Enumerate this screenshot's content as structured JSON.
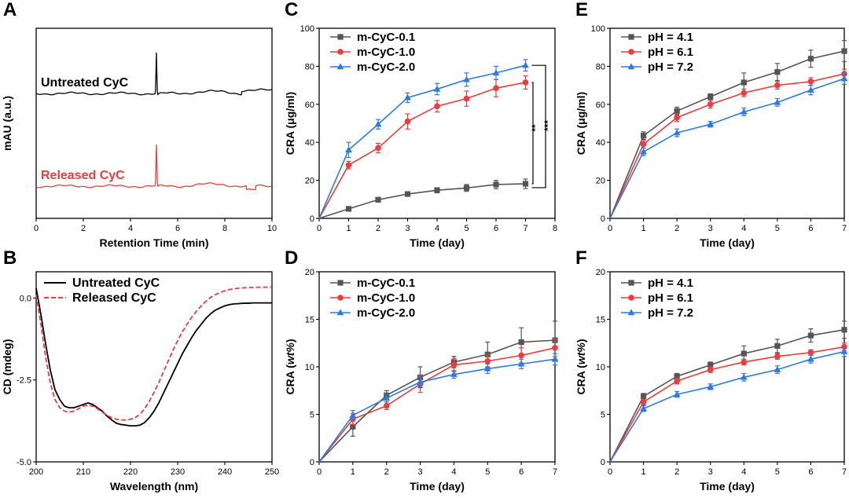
{
  "colors": {
    "gray": "#555555",
    "red": "#ef3b3b",
    "blue": "#2c7be5",
    "black": "#000000"
  },
  "chart_data": [
    {
      "panel": "A",
      "type": "line",
      "xlabel": "Retention Time (min)",
      "ylabel": "mAU (a.u.)",
      "xlim": [
        0,
        10
      ],
      "xticks": [
        0,
        2,
        4,
        6,
        8,
        10
      ],
      "series": [
        {
          "name": "Untreated CyC",
          "color": "black",
          "baseline": 0,
          "peak_at": 5.1,
          "peak_height": 1.0,
          "notes": "single sharp peak near 5.1 min, small step near 8.8 min"
        },
        {
          "name": "Released CyC",
          "color": "red",
          "baseline": 0,
          "peak_at": 5.1,
          "peak_height": 1.0,
          "notes": "single sharp peak near 5.1 min, small dip near 9.0 min"
        }
      ]
    },
    {
      "panel": "B",
      "type": "line",
      "xlabel": "Wavelength (nm)",
      "ylabel": "CD (mdeg)",
      "xlim": [
        200,
        250
      ],
      "ylim": [
        -5.0,
        0.8
      ],
      "xticks": [
        200,
        210,
        220,
        230,
        240,
        250
      ],
      "yticks": [
        "0.0",
        "-2.5",
        "-5.0"
      ],
      "series": [
        {
          "name": "Untreated CyC",
          "style": "solid",
          "color": "black",
          "x": [
            200,
            201,
            202,
            203,
            204,
            205,
            206,
            207,
            208,
            209,
            210,
            211,
            212,
            213,
            214,
            215,
            216,
            217,
            218,
            219,
            220,
            221,
            222,
            223,
            224,
            225,
            226,
            227,
            228,
            229,
            230,
            231,
            232,
            233,
            234,
            235,
            236,
            237,
            238,
            239,
            240,
            241,
            242,
            243,
            244,
            245,
            246,
            247,
            248,
            249,
            250
          ],
          "y": [
            0.3,
            -0.5,
            -1.4,
            -2.2,
            -2.8,
            -3.1,
            -3.3,
            -3.35,
            -3.35,
            -3.3,
            -3.25,
            -3.2,
            -3.25,
            -3.35,
            -3.45,
            -3.6,
            -3.72,
            -3.82,
            -3.86,
            -3.88,
            -3.9,
            -3.9,
            -3.88,
            -3.8,
            -3.65,
            -3.45,
            -3.2,
            -2.9,
            -2.6,
            -2.3,
            -2.0,
            -1.7,
            -1.45,
            -1.2,
            -0.98,
            -0.8,
            -0.62,
            -0.48,
            -0.37,
            -0.3,
            -0.24,
            -0.2,
            -0.18,
            -0.17,
            -0.16,
            -0.16,
            -0.15,
            -0.15,
            -0.15,
            -0.15,
            -0.15
          ]
        },
        {
          "name": "Released CyC",
          "style": "dashed",
          "color": "red",
          "x": [
            200,
            201,
            202,
            203,
            204,
            205,
            206,
            207,
            208,
            209,
            210,
            211,
            212,
            213,
            214,
            215,
            216,
            217,
            218,
            219,
            220,
            221,
            222,
            223,
            224,
            225,
            226,
            227,
            228,
            229,
            230,
            231,
            232,
            233,
            234,
            235,
            236,
            237,
            238,
            239,
            240,
            241,
            242,
            243,
            244,
            245,
            246,
            247,
            248,
            249,
            250
          ],
          "y": [
            0.1,
            -0.8,
            -1.8,
            -2.6,
            -3.1,
            -3.35,
            -3.45,
            -3.48,
            -3.45,
            -3.38,
            -3.3,
            -3.27,
            -3.3,
            -3.38,
            -3.48,
            -3.58,
            -3.65,
            -3.7,
            -3.72,
            -3.72,
            -3.7,
            -3.65,
            -3.55,
            -3.38,
            -3.15,
            -2.88,
            -2.58,
            -2.25,
            -1.92,
            -1.6,
            -1.3,
            -1.03,
            -0.8,
            -0.58,
            -0.4,
            -0.24,
            -0.1,
            0.02,
            0.1,
            0.17,
            0.22,
            0.26,
            0.28,
            0.3,
            0.31,
            0.32,
            0.32,
            0.33,
            0.33,
            0.33,
            0.33
          ]
        }
      ]
    },
    {
      "panel": "C",
      "type": "line",
      "xlabel": "Time (day)",
      "ylabel": "CRA (μg/ml)",
      "xlim": [
        0,
        8
      ],
      "ylim": [
        0,
        100
      ],
      "xticks": [
        0,
        1,
        2,
        3,
        4,
        5,
        6,
        7,
        8
      ],
      "yticks": [
        0,
        20,
        40,
        60,
        80,
        100
      ],
      "x": [
        0,
        1,
        2,
        3,
        4,
        5,
        6,
        7
      ],
      "series": [
        {
          "name": "m-CyC-0.1",
          "color": "gray",
          "marker": "square",
          "values": [
            0,
            5,
            9.8,
            12.8,
            14.8,
            16,
            17.8,
            18.2
          ],
          "errors": [
            0,
            1,
            1.2,
            1.2,
            1.3,
            1.8,
            2.2,
            2.5
          ]
        },
        {
          "name": "m-CyC-1.0",
          "color": "red",
          "marker": "circle",
          "values": [
            0,
            28,
            37,
            51,
            59,
            63,
            68.5,
            71.5
          ],
          "errors": [
            0,
            2,
            2.5,
            4,
            3,
            4,
            4.5,
            3.5
          ]
        },
        {
          "name": "m-CyC-2.0",
          "color": "blue",
          "marker": "triangle",
          "values": [
            0,
            36,
            49.5,
            63.5,
            68,
            73,
            76.5,
            80.5
          ],
          "errors": [
            0,
            4,
            2.5,
            2.5,
            3,
            3.5,
            3.5,
            3
          ]
        }
      ],
      "annotations": [
        "**",
        "***"
      ]
    },
    {
      "panel": "D",
      "type": "line",
      "xlabel": "Time (day)",
      "ylabel": "CRA (wt%)",
      "xlim": [
        0,
        7
      ],
      "ylim": [
        0,
        20
      ],
      "xticks": [
        0,
        1,
        2,
        3,
        4,
        5,
        6,
        7
      ],
      "yticks": [
        0,
        5,
        10,
        15,
        20
      ],
      "x": [
        0,
        1,
        2,
        3,
        4,
        5,
        6,
        7
      ],
      "series": [
        {
          "name": "m-CyC-0.1",
          "color": "gray",
          "marker": "square",
          "values": [
            0,
            3.7,
            7.0,
            8.9,
            10.5,
            11.3,
            12.6,
            12.8
          ],
          "errors": [
            0,
            1.0,
            0.5,
            1.1,
            0.6,
            1.3,
            1.5,
            2.0
          ]
        },
        {
          "name": "m-CyC-1.0",
          "color": "red",
          "marker": "circle",
          "values": [
            0,
            4.5,
            5.9,
            8.2,
            10.2,
            10.6,
            11.2,
            12.0
          ],
          "errors": [
            0,
            0.6,
            0.4,
            0.9,
            0.7,
            0.7,
            0.8,
            0.9
          ]
        },
        {
          "name": "m-CyC-2.0",
          "color": "blue",
          "marker": "triangle",
          "values": [
            0,
            4.9,
            6.7,
            8.4,
            9.2,
            9.8,
            10.3,
            10.8
          ],
          "errors": [
            0,
            0.5,
            0.4,
            0.5,
            0.4,
            0.5,
            0.5,
            0.6
          ]
        }
      ]
    },
    {
      "panel": "E",
      "type": "line",
      "xlabel": "Time (day)",
      "ylabel": "CRA (μg/ml)",
      "xlim": [
        0,
        7
      ],
      "ylim": [
        0,
        100
      ],
      "xticks": [
        0,
        1,
        2,
        3,
        4,
        5,
        6,
        7
      ],
      "yticks": [
        0,
        20,
        40,
        60,
        80,
        100
      ],
      "x": [
        0,
        1,
        2,
        3,
        4,
        5,
        6,
        7
      ],
      "series": [
        {
          "name": "pH = 4.1",
          "color": "gray",
          "marker": "square",
          "values": [
            0,
            43.5,
            56.5,
            64,
            71.5,
            77,
            84,
            88
          ],
          "errors": [
            0,
            2,
            2,
            1.5,
            5,
            4.5,
            4.5,
            5.5
          ]
        },
        {
          "name": "pH = 6.1",
          "color": "red",
          "marker": "circle",
          "values": [
            0,
            39,
            53,
            60,
            66,
            70,
            72,
            76
          ],
          "errors": [
            0,
            2,
            2,
            2,
            2,
            2,
            2,
            2.5
          ]
        },
        {
          "name": "pH = 7.2",
          "color": "blue",
          "marker": "triangle",
          "values": [
            0,
            35,
            45,
            49.5,
            56,
            61,
            67.5,
            73.5
          ],
          "errors": [
            0,
            2,
            2,
            1.5,
            2,
            2,
            2.5,
            3
          ]
        }
      ]
    },
    {
      "panel": "F",
      "type": "line",
      "xlabel": "Time (day)",
      "ylabel": "CRA (wt%)",
      "xlim": [
        0,
        7
      ],
      "ylim": [
        0,
        20
      ],
      "xticks": [
        0,
        1,
        2,
        3,
        4,
        5,
        6,
        7
      ],
      "yticks": [
        0,
        5,
        10,
        15,
        20
      ],
      "x": [
        0,
        1,
        2,
        3,
        4,
        5,
        6,
        7
      ],
      "series": [
        {
          "name": "pH = 4.1",
          "color": "gray",
          "marker": "square",
          "values": [
            0,
            6.9,
            9.0,
            10.2,
            11.4,
            12.2,
            13.3,
            13.9
          ],
          "errors": [
            0,
            0.3,
            0.3,
            0.3,
            0.8,
            0.7,
            0.7,
            0.9
          ]
        },
        {
          "name": "pH = 6.1",
          "color": "red",
          "marker": "circle",
          "values": [
            0,
            6.3,
            8.5,
            9.7,
            10.5,
            11.1,
            11.5,
            12.1
          ],
          "errors": [
            0,
            0.3,
            0.3,
            0.3,
            0.3,
            0.3,
            0.3,
            0.4
          ]
        },
        {
          "name": "pH = 7.2",
          "color": "blue",
          "marker": "triangle",
          "values": [
            0,
            5.6,
            7.1,
            7.9,
            8.9,
            9.7,
            10.8,
            11.6
          ],
          "errors": [
            0,
            0.3,
            0.3,
            0.3,
            0.4,
            0.4,
            0.4,
            0.5
          ]
        }
      ]
    }
  ]
}
